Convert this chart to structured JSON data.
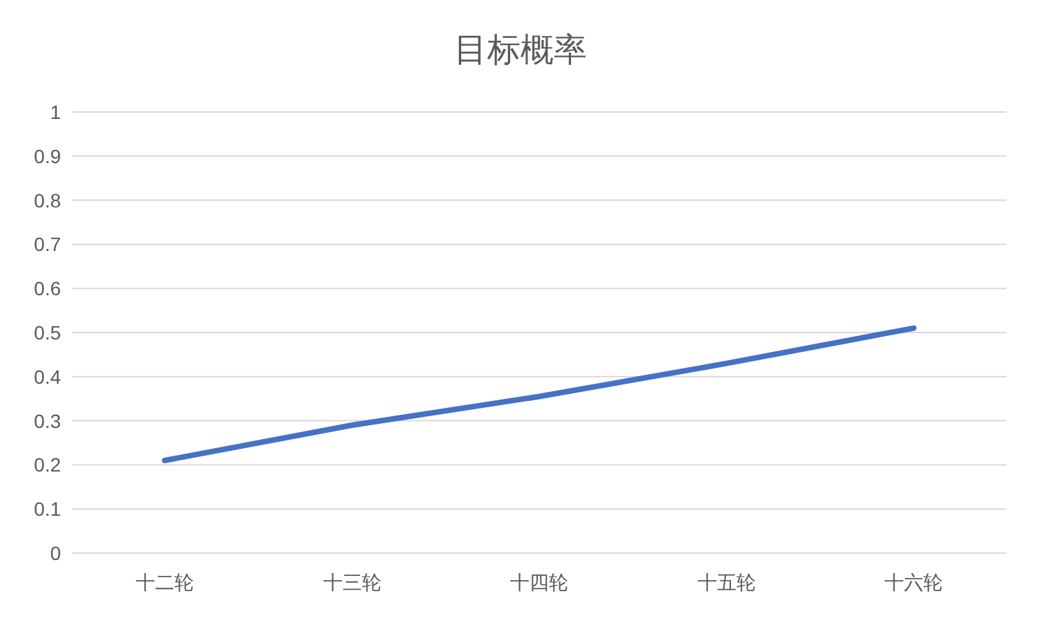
{
  "chart_data": {
    "type": "line",
    "title": "目标概率",
    "categories": [
      "十二轮",
      "十三轮",
      "十四轮",
      "十五轮",
      "十六轮"
    ],
    "series": [
      {
        "color": "#4472c4",
        "values": [
          0.21,
          0.29,
          0.355,
          0.43,
          0.51
        ]
      }
    ],
    "ylim": [
      0,
      1
    ],
    "yticks": [
      0,
      0.1,
      0.2,
      0.3,
      0.4,
      0.5,
      0.6,
      0.7,
      0.8,
      0.9,
      1
    ],
    "grid": "y",
    "legend": false,
    "marker": "none",
    "line_style": "solid"
  }
}
